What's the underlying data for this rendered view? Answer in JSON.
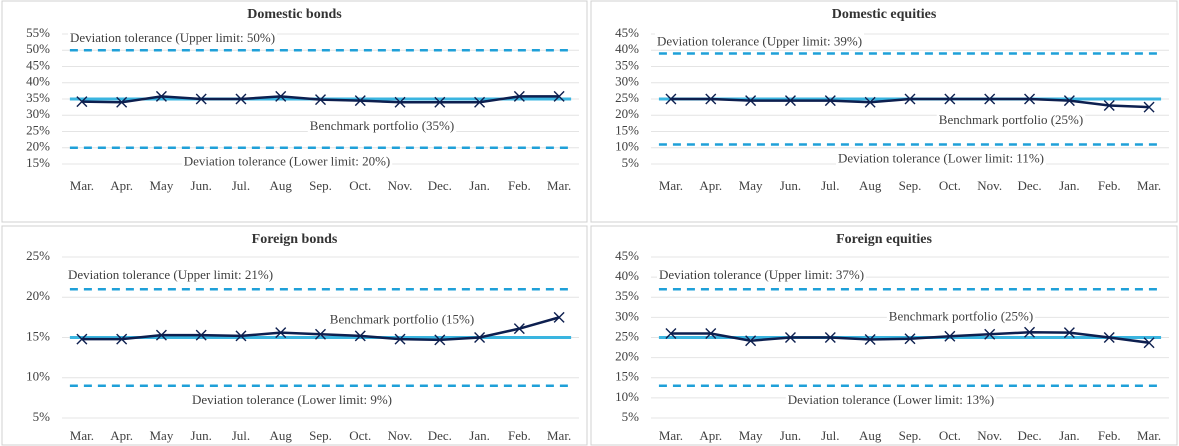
{
  "chart_data": [
    {
      "type": "line",
      "title": "Domestic bonds",
      "categories": [
        "Mar.",
        "Apr.",
        "May",
        "Jun.",
        "Jul.",
        "Aug",
        "Sep.",
        "Oct.",
        "Nov.",
        "Dec.",
        "Jan.",
        "Feb.",
        "Mar."
      ],
      "series": [
        {
          "color": "#0d1f4f",
          "values": [
            34.2,
            34,
            35.8,
            35,
            35,
            35.8,
            34.8,
            34.5,
            34,
            34,
            34,
            35.8,
            35.8
          ]
        }
      ],
      "ylim": [
        15,
        55
      ],
      "yticks": [
        {
          "value": 15,
          "label": "15%"
        },
        {
          "value": 20,
          "label": "20%"
        },
        {
          "value": 25,
          "label": "25%"
        },
        {
          "value": 30,
          "label": "30%"
        },
        {
          "value": 35,
          "label": "35%"
        },
        {
          "value": 40,
          "label": "40%"
        },
        {
          "value": 45,
          "label": "45%"
        },
        {
          "value": 50,
          "label": "50%"
        },
        {
          "value": 55,
          "label": "55%"
        }
      ],
      "reference_lines": [
        {
          "label": "Deviation tolerance (Upper limit: 50%)",
          "value": 50,
          "color": "#1fa0d8",
          "style": "dashed"
        },
        {
          "label": "Benchmark portfolio (35%)",
          "value": 35,
          "color": "#3ab5e0",
          "style": "solid"
        },
        {
          "label": "Deviation tolerance (Lower limit: 20%)",
          "value": 20,
          "color": "#1fa0d8",
          "style": "dashed"
        }
      ]
    },
    {
      "type": "line",
      "title": "Domestic equities",
      "categories": [
        "Mar.",
        "Apr.",
        "May",
        "Jun.",
        "Jul.",
        "Aug",
        "Sep.",
        "Oct.",
        "Nov.",
        "Dec.",
        "Jan.",
        "Feb.",
        "Mar."
      ],
      "series": [
        {
          "color": "#0d1f4f",
          "values": [
            25,
            25,
            24.5,
            24.5,
            24.5,
            24,
            25,
            25,
            25,
            25,
            24.5,
            23,
            22.5
          ]
        }
      ],
      "ylim": [
        5,
        45
      ],
      "yticks": [
        {
          "value": 5,
          "label": "5%"
        },
        {
          "value": 10,
          "label": "10%"
        },
        {
          "value": 15,
          "label": "15%"
        },
        {
          "value": 20,
          "label": "20%"
        },
        {
          "value": 25,
          "label": "25%"
        },
        {
          "value": 30,
          "label": "30%"
        },
        {
          "value": 35,
          "label": "35%"
        },
        {
          "value": 40,
          "label": "40%"
        },
        {
          "value": 45,
          "label": "45%"
        }
      ],
      "reference_lines": [
        {
          "label": "Deviation tolerance (Upper limit: 39%)",
          "value": 39,
          "color": "#1fa0d8",
          "style": "dashed"
        },
        {
          "label": "Benchmark portfolio (25%)",
          "value": 25,
          "color": "#3ab5e0",
          "style": "solid"
        },
        {
          "label": "Deviation tolerance (Lower limit: 11%)",
          "value": 11,
          "color": "#1fa0d8",
          "style": "dashed"
        }
      ]
    },
    {
      "type": "line",
      "title": "Foreign bonds",
      "categories": [
        "Mar.",
        "Apr.",
        "May",
        "Jun.",
        "Jul.",
        "Aug",
        "Sep.",
        "Oct.",
        "Nov.",
        "Dec.",
        "Jan.",
        "Feb.",
        "Mar."
      ],
      "series": [
        {
          "color": "#0d1f4f",
          "values": [
            14.8,
            14.8,
            15.3,
            15.3,
            15.2,
            15.6,
            15.4,
            15.2,
            14.8,
            14.7,
            15,
            16.1,
            17.5
          ]
        }
      ],
      "ylim": [
        5,
        25
      ],
      "yticks": [
        {
          "value": 5,
          "label": "5%"
        },
        {
          "value": 10,
          "label": "10%"
        },
        {
          "value": 15,
          "label": "15%"
        },
        {
          "value": 20,
          "label": "20%"
        },
        {
          "value": 25,
          "label": "25%"
        }
      ],
      "reference_lines": [
        {
          "label": "Deviation tolerance (Upper limit: 21%)",
          "value": 21,
          "color": "#1fa0d8",
          "style": "dashed"
        },
        {
          "label": "Benchmark portfolio (15%)",
          "value": 15,
          "color": "#3ab5e0",
          "style": "solid"
        },
        {
          "label": "Deviation tolerance (Lower limit: 9%)",
          "value": 9,
          "color": "#1fa0d8",
          "style": "dashed"
        }
      ]
    },
    {
      "type": "line",
      "title": "Foreign equities",
      "categories": [
        "Mar.",
        "Apr.",
        "May",
        "Jun.",
        "Jul.",
        "Aug",
        "Sep.",
        "Oct.",
        "Nov.",
        "Dec.",
        "Jan.",
        "Feb.",
        "Mar."
      ],
      "series": [
        {
          "color": "#0d1f4f",
          "values": [
            26,
            26,
            24.2,
            25,
            25,
            24.5,
            24.7,
            25.3,
            25.8,
            26.3,
            26.2,
            25,
            23.7
          ]
        }
      ],
      "ylim": [
        5,
        45
      ],
      "yticks": [
        {
          "value": 5,
          "label": "5%"
        },
        {
          "value": 10,
          "label": "10%"
        },
        {
          "value": 15,
          "label": "15%"
        },
        {
          "value": 20,
          "label": "20%"
        },
        {
          "value": 25,
          "label": "25%"
        },
        {
          "value": 30,
          "label": "30%"
        },
        {
          "value": 35,
          "label": "35%"
        },
        {
          "value": 40,
          "label": "40%"
        },
        {
          "value": 45,
          "label": "45%"
        }
      ],
      "reference_lines": [
        {
          "label": "Deviation tolerance (Upper limit: 37%)",
          "value": 37,
          "color": "#1fa0d8",
          "style": "dashed"
        },
        {
          "label": "Benchmark portfolio (25%)",
          "value": 25,
          "color": "#3ab5e0",
          "style": "solid"
        },
        {
          "label": "Deviation tolerance (Lower limit: 13%)",
          "value": 13,
          "color": "#1fa0d8",
          "style": "dashed"
        }
      ]
    }
  ]
}
